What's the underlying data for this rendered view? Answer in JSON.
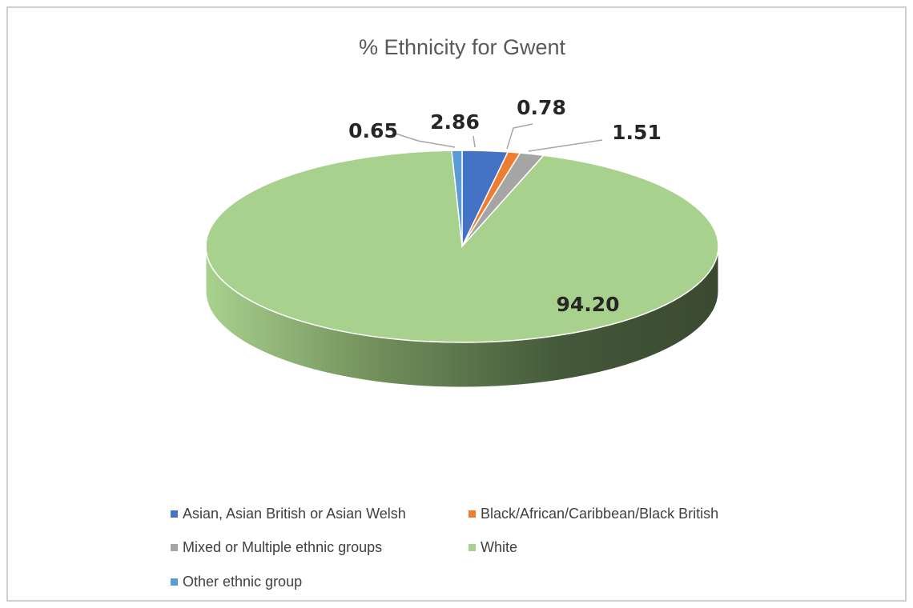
{
  "chart_data": {
    "type": "pie",
    "title": "% Ethnicity for Gwent",
    "three_d": true,
    "legend_position": "bottom",
    "slices": [
      {
        "label": "Asian, Asian British or Asian Welsh",
        "value": 2.86,
        "display": "2.86",
        "color": "#4472c4"
      },
      {
        "label": "Black/African/Caribbean/Black British",
        "value": 0.78,
        "display": "0.78",
        "color": "#ed7d31"
      },
      {
        "label": "Mixed or Multiple ethnic groups",
        "value": 1.51,
        "display": "1.51",
        "color": "#a5a5a5"
      },
      {
        "label": "White",
        "value": 94.2,
        "display": "94.20",
        "color": "#a9d18e"
      },
      {
        "label": "Other ethnic group",
        "value": 0.65,
        "display": "0.65",
        "color": "#5b9bd5"
      }
    ]
  }
}
